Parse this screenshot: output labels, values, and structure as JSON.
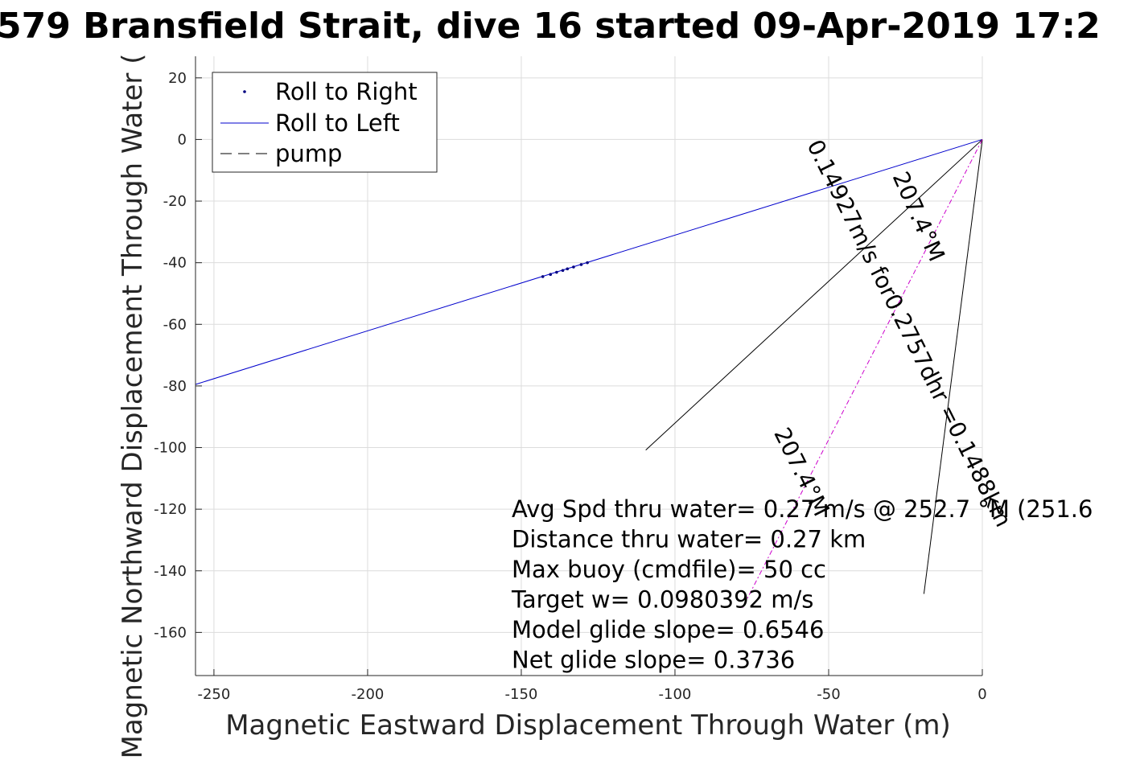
{
  "chart_data": {
    "type": "line",
    "title": "579 Bransfield Strait, dive 16 started 09-Apr-2019 17:2",
    "xlabel": "Magnetic Eastward Displacement Through Water (m)",
    "ylabel": "Magnetic Northward Displacement Through Water (",
    "xlim": [
      -256,
      0
    ],
    "ylim": [
      -174,
      27
    ],
    "xticks": [
      -250,
      -200,
      -150,
      -100,
      -50,
      0
    ],
    "yticks": [
      20,
      0,
      -20,
      -40,
      -60,
      -80,
      -100,
      -120,
      -140,
      -160
    ],
    "xtick_labels": [
      "-250",
      "-200",
      "-150",
      "-100",
      "-50",
      "0"
    ],
    "ytick_labels": [
      "20",
      "0",
      "-20",
      "-40",
      "-60",
      "-80",
      "-100",
      "-120",
      "-140",
      "-160"
    ],
    "grid": true,
    "legend_position": "top-left",
    "legend": [
      {
        "label": "Roll to Right",
        "style": "dot",
        "color": "#000080"
      },
      {
        "label": "Roll to Left",
        "style": "line",
        "color": "#0000cc"
      },
      {
        "label": "pump",
        "style": "dash",
        "color": "#000000"
      }
    ],
    "series": [
      {
        "name": "Roll to Left",
        "style": "line",
        "color": "#0000cc",
        "x": [
          0,
          -256
        ],
        "y": [
          0,
          -79.5
        ]
      },
      {
        "name": "Roll to Right",
        "style": "dot",
        "color": "#000080",
        "x": [
          -143,
          -140.5,
          -138.5,
          -136.5,
          -135,
          -133,
          -130.5,
          -128.5
        ],
        "y": [
          -44.5,
          -43.8,
          -43.1,
          -42.5,
          -42.0,
          -41.4,
          -40.6,
          -40.0
        ]
      },
      {
        "style": "line",
        "color": "#000000",
        "x": [
          0,
          -109.5
        ],
        "y": [
          0,
          -100.8
        ]
      },
      {
        "style": "line",
        "color": "#000000",
        "x": [
          0,
          -19
        ],
        "y": [
          0,
          -147.5
        ]
      },
      {
        "style": "dashdot",
        "color": "#cc00cc",
        "x": [
          0,
          -78
        ],
        "y": [
          0,
          -152
        ]
      }
    ],
    "vector_labels": [
      {
        "text": "0.14927m/s for0.2757dhr =0.1488km",
        "x": -26,
        "y": -64,
        "angle": 63.5
      },
      {
        "text": "207.4°M",
        "x": -23,
        "y": -26,
        "angle": 66
      },
      {
        "text": "207.4°M",
        "x": -61,
        "y": -109,
        "angle": 63.5
      }
    ],
    "annotations": [
      "Avg Spd thru water= 0.27 m/s @ 252.7 °M (251.6",
      "Distance thru water= 0.27 km",
      "Max buoy (cmdfile)= 50 cc",
      "Target w= 0.0980392 m/s",
      "Model glide slope= 0.6546",
      "Net glide slope= 0.3736"
    ]
  }
}
